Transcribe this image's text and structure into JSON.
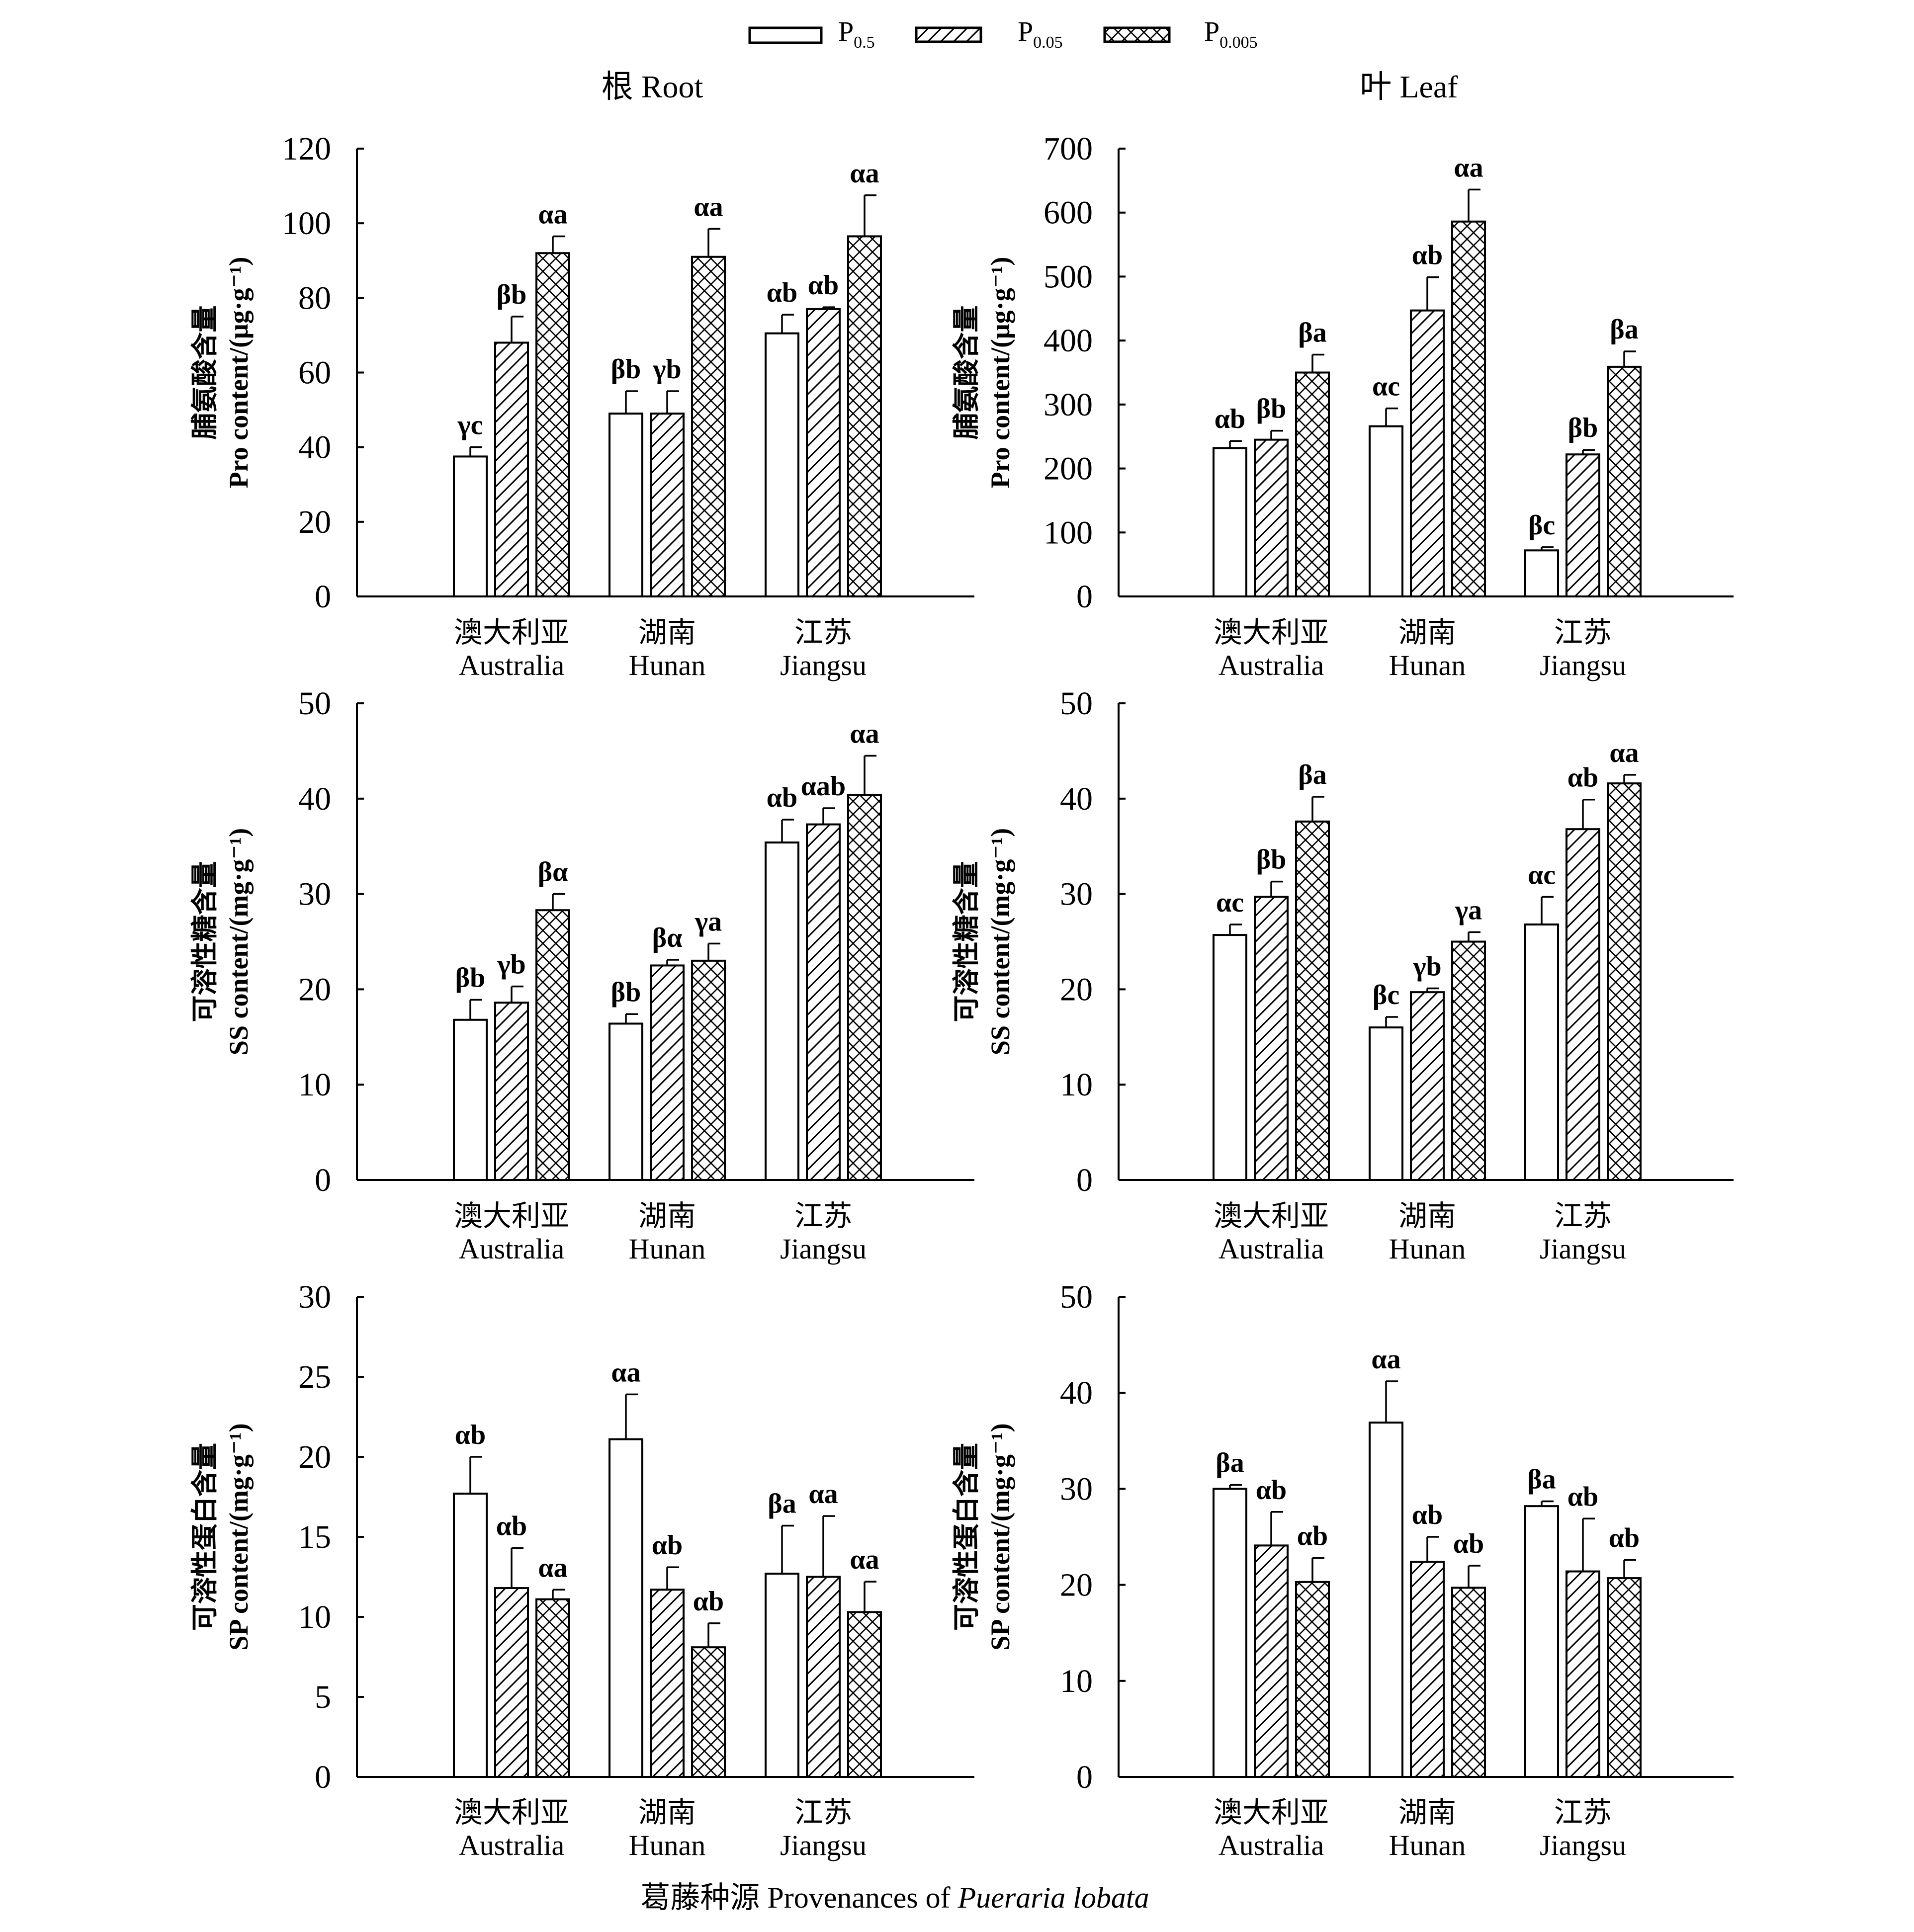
{
  "legend": {
    "items": [
      {
        "label": "P",
        "sub": "0.5",
        "pattern": "empty"
      },
      {
        "label": "P",
        "sub": "0.05",
        "pattern": "diagonal"
      },
      {
        "label": "P",
        "sub": "0.005",
        "pattern": "crosshatch"
      }
    ]
  },
  "column_titles": [
    "根 Root",
    "叶 Leaf"
  ],
  "caption": {
    "prefix": "葛藤种源 Provenances of ",
    "italic": "Pueraria lobata"
  },
  "chart_data": [
    {
      "id": "root-pro",
      "type": "bar",
      "title": "根 Root",
      "ylabel_cn": "脯氨酸含量",
      "ylabel_en": "Pro content/(μg·g⁻¹)",
      "ylim": [
        0,
        120
      ],
      "yticks": [
        0,
        20,
        40,
        60,
        80,
        100,
        120
      ],
      "categories": [
        {
          "cn": "澳大利亚",
          "en": "Australia"
        },
        {
          "cn": "湖南",
          "en": "Hunan"
        },
        {
          "cn": "江苏",
          "en": "Jiangsu"
        }
      ],
      "series": [
        {
          "name": "P0.5",
          "values": [
            37.5,
            49,
            70.5
          ],
          "errors": [
            2.5,
            6,
            5
          ],
          "labels": [
            "γc",
            "βb",
            "αb"
          ]
        },
        {
          "name": "P0.05",
          "values": [
            68,
            49,
            77
          ],
          "errors": [
            7,
            6,
            0.5
          ],
          "labels": [
            "βb",
            "γb",
            "αb"
          ]
        },
        {
          "name": "P0.005",
          "values": [
            92,
            91,
            96.5
          ],
          "errors": [
            4.5,
            7.5,
            11
          ],
          "labels": [
            "αa",
            "αa",
            "αa"
          ]
        }
      ]
    },
    {
      "id": "leaf-pro",
      "type": "bar",
      "title": "叶 Leaf",
      "ylabel_cn": "脯氨酸含量",
      "ylabel_en": "Pro content/(μg·g⁻¹)",
      "ylim": [
        0,
        700
      ],
      "yticks": [
        0,
        100,
        200,
        300,
        400,
        500,
        600,
        700
      ],
      "categories": [
        {
          "cn": "澳大利亚",
          "en": "Australia"
        },
        {
          "cn": "湖南",
          "en": "Hunan"
        },
        {
          "cn": "江苏",
          "en": "Jiangsu"
        }
      ],
      "series": [
        {
          "name": "P0.5",
          "values": [
            232,
            266,
            72
          ],
          "errors": [
            11,
            28,
            5
          ],
          "labels": [
            "αb",
            "αc",
            "βc"
          ]
        },
        {
          "name": "P0.05",
          "values": [
            245,
            447,
            222
          ],
          "errors": [
            14,
            52,
            7
          ],
          "labels": [
            "βb",
            "αb",
            "βb"
          ]
        },
        {
          "name": "P0.005",
          "values": [
            350,
            586,
            359
          ],
          "errors": [
            28,
            50,
            24
          ],
          "labels": [
            "βa",
            "αa",
            "βa"
          ]
        }
      ]
    },
    {
      "id": "root-ss",
      "type": "bar",
      "ylabel_cn": "可溶性糖含量",
      "ylabel_en": "SS content/(mg·g⁻¹)",
      "ylim": [
        0,
        50
      ],
      "yticks": [
        0,
        10,
        20,
        30,
        40,
        50
      ],
      "categories": [
        {
          "cn": "澳大利亚",
          "en": "Australia"
        },
        {
          "cn": "湖南",
          "en": "Hunan"
        },
        {
          "cn": "江苏",
          "en": "Jiangsu"
        }
      ],
      "series": [
        {
          "name": "P0.5",
          "values": [
            16.8,
            16.4,
            35.4
          ],
          "errors": [
            2.1,
            1.0,
            2.4
          ],
          "labels": [
            "βb",
            "βb",
            "αb"
          ]
        },
        {
          "name": "P0.05",
          "values": [
            18.6,
            22.5,
            37.3
          ],
          "errors": [
            1.7,
            0.6,
            1.7
          ],
          "labels": [
            "γb",
            "βα",
            "αab"
          ]
        },
        {
          "name": "P0.005",
          "values": [
            28.3,
            23.0,
            40.4
          ],
          "errors": [
            1.7,
            1.8,
            4.1
          ],
          "labels": [
            "βα",
            "γa",
            "αa"
          ]
        }
      ]
    },
    {
      "id": "leaf-ss",
      "type": "bar",
      "ylabel_cn": "可溶性糖含量",
      "ylabel_en": "SS content/(mg·g⁻¹)",
      "ylim": [
        0,
        50
      ],
      "yticks": [
        0,
        10,
        20,
        30,
        40,
        50
      ],
      "categories": [
        {
          "cn": "澳大利亚",
          "en": "Australia"
        },
        {
          "cn": "湖南",
          "en": "Hunan"
        },
        {
          "cn": "江苏",
          "en": "Jiangsu"
        }
      ],
      "series": [
        {
          "name": "P0.5",
          "values": [
            25.7,
            16.0,
            26.8
          ],
          "errors": [
            1.1,
            1.1,
            2.9
          ],
          "labels": [
            "αc",
            "βc",
            "αc"
          ]
        },
        {
          "name": "P0.05",
          "values": [
            29.7,
            19.7,
            36.8
          ],
          "errors": [
            1.6,
            0.4,
            3.1
          ],
          "labels": [
            "βb",
            "γb",
            "αb"
          ]
        },
        {
          "name": "P0.005",
          "values": [
            37.6,
            25.0,
            41.6
          ],
          "errors": [
            2.6,
            1.0,
            0.9
          ],
          "labels": [
            "βa",
            "γa",
            "αa"
          ]
        }
      ]
    },
    {
      "id": "root-sp",
      "type": "bar",
      "ylabel_cn": "可溶性蛋白含量",
      "ylabel_en": "SP content/(mg·g⁻¹)",
      "ylim": [
        0,
        30
      ],
      "yticks": [
        0,
        5,
        10,
        15,
        20,
        25,
        30
      ],
      "categories": [
        {
          "cn": "澳大利亚",
          "en": "Australia"
        },
        {
          "cn": "湖南",
          "en": "Hunan"
        },
        {
          "cn": "江苏",
          "en": "Jiangsu"
        }
      ],
      "series": [
        {
          "name": "P0.5",
          "values": [
            17.7,
            21.1,
            12.7
          ],
          "errors": [
            2.3,
            2.8,
            3.0
          ],
          "labels": [
            "αb",
            "αa",
            "βa"
          ]
        },
        {
          "name": "P0.05",
          "values": [
            11.8,
            11.7,
            12.5
          ],
          "errors": [
            2.5,
            1.4,
            3.8
          ],
          "labels": [
            "αb",
            "αb",
            "αa"
          ]
        },
        {
          "name": "P0.005",
          "values": [
            11.1,
            8.1,
            10.3
          ],
          "errors": [
            0.6,
            1.5,
            1.9
          ],
          "labels": [
            "αa",
            "αb",
            "αa"
          ]
        }
      ]
    },
    {
      "id": "leaf-sp",
      "type": "bar",
      "ylabel_cn": "可溶性蛋白含量",
      "ylabel_en": "SP content/(mg·g⁻¹)",
      "ylim": [
        0,
        50
      ],
      "yticks": [
        0,
        10,
        20,
        30,
        40,
        50
      ],
      "categories": [
        {
          "cn": "澳大利亚",
          "en": "Australia"
        },
        {
          "cn": "湖南",
          "en": "Hunan"
        },
        {
          "cn": "江苏",
          "en": "Jiangsu"
        }
      ],
      "series": [
        {
          "name": "P0.5",
          "values": [
            30.0,
            36.9,
            28.2
          ],
          "errors": [
            0.4,
            4.3,
            0.5
          ],
          "labels": [
            "βa",
            "αa",
            "βa"
          ]
        },
        {
          "name": "P0.05",
          "values": [
            24.1,
            22.4,
            21.4
          ],
          "errors": [
            3.5,
            2.6,
            5.5
          ],
          "labels": [
            "αb",
            "αb",
            "αb"
          ]
        },
        {
          "name": "P0.005",
          "values": [
            20.3,
            19.7,
            20.7
          ],
          "errors": [
            2.5,
            2.3,
            1.9
          ],
          "labels": [
            "αb",
            "αb",
            "αb"
          ]
        }
      ]
    }
  ]
}
